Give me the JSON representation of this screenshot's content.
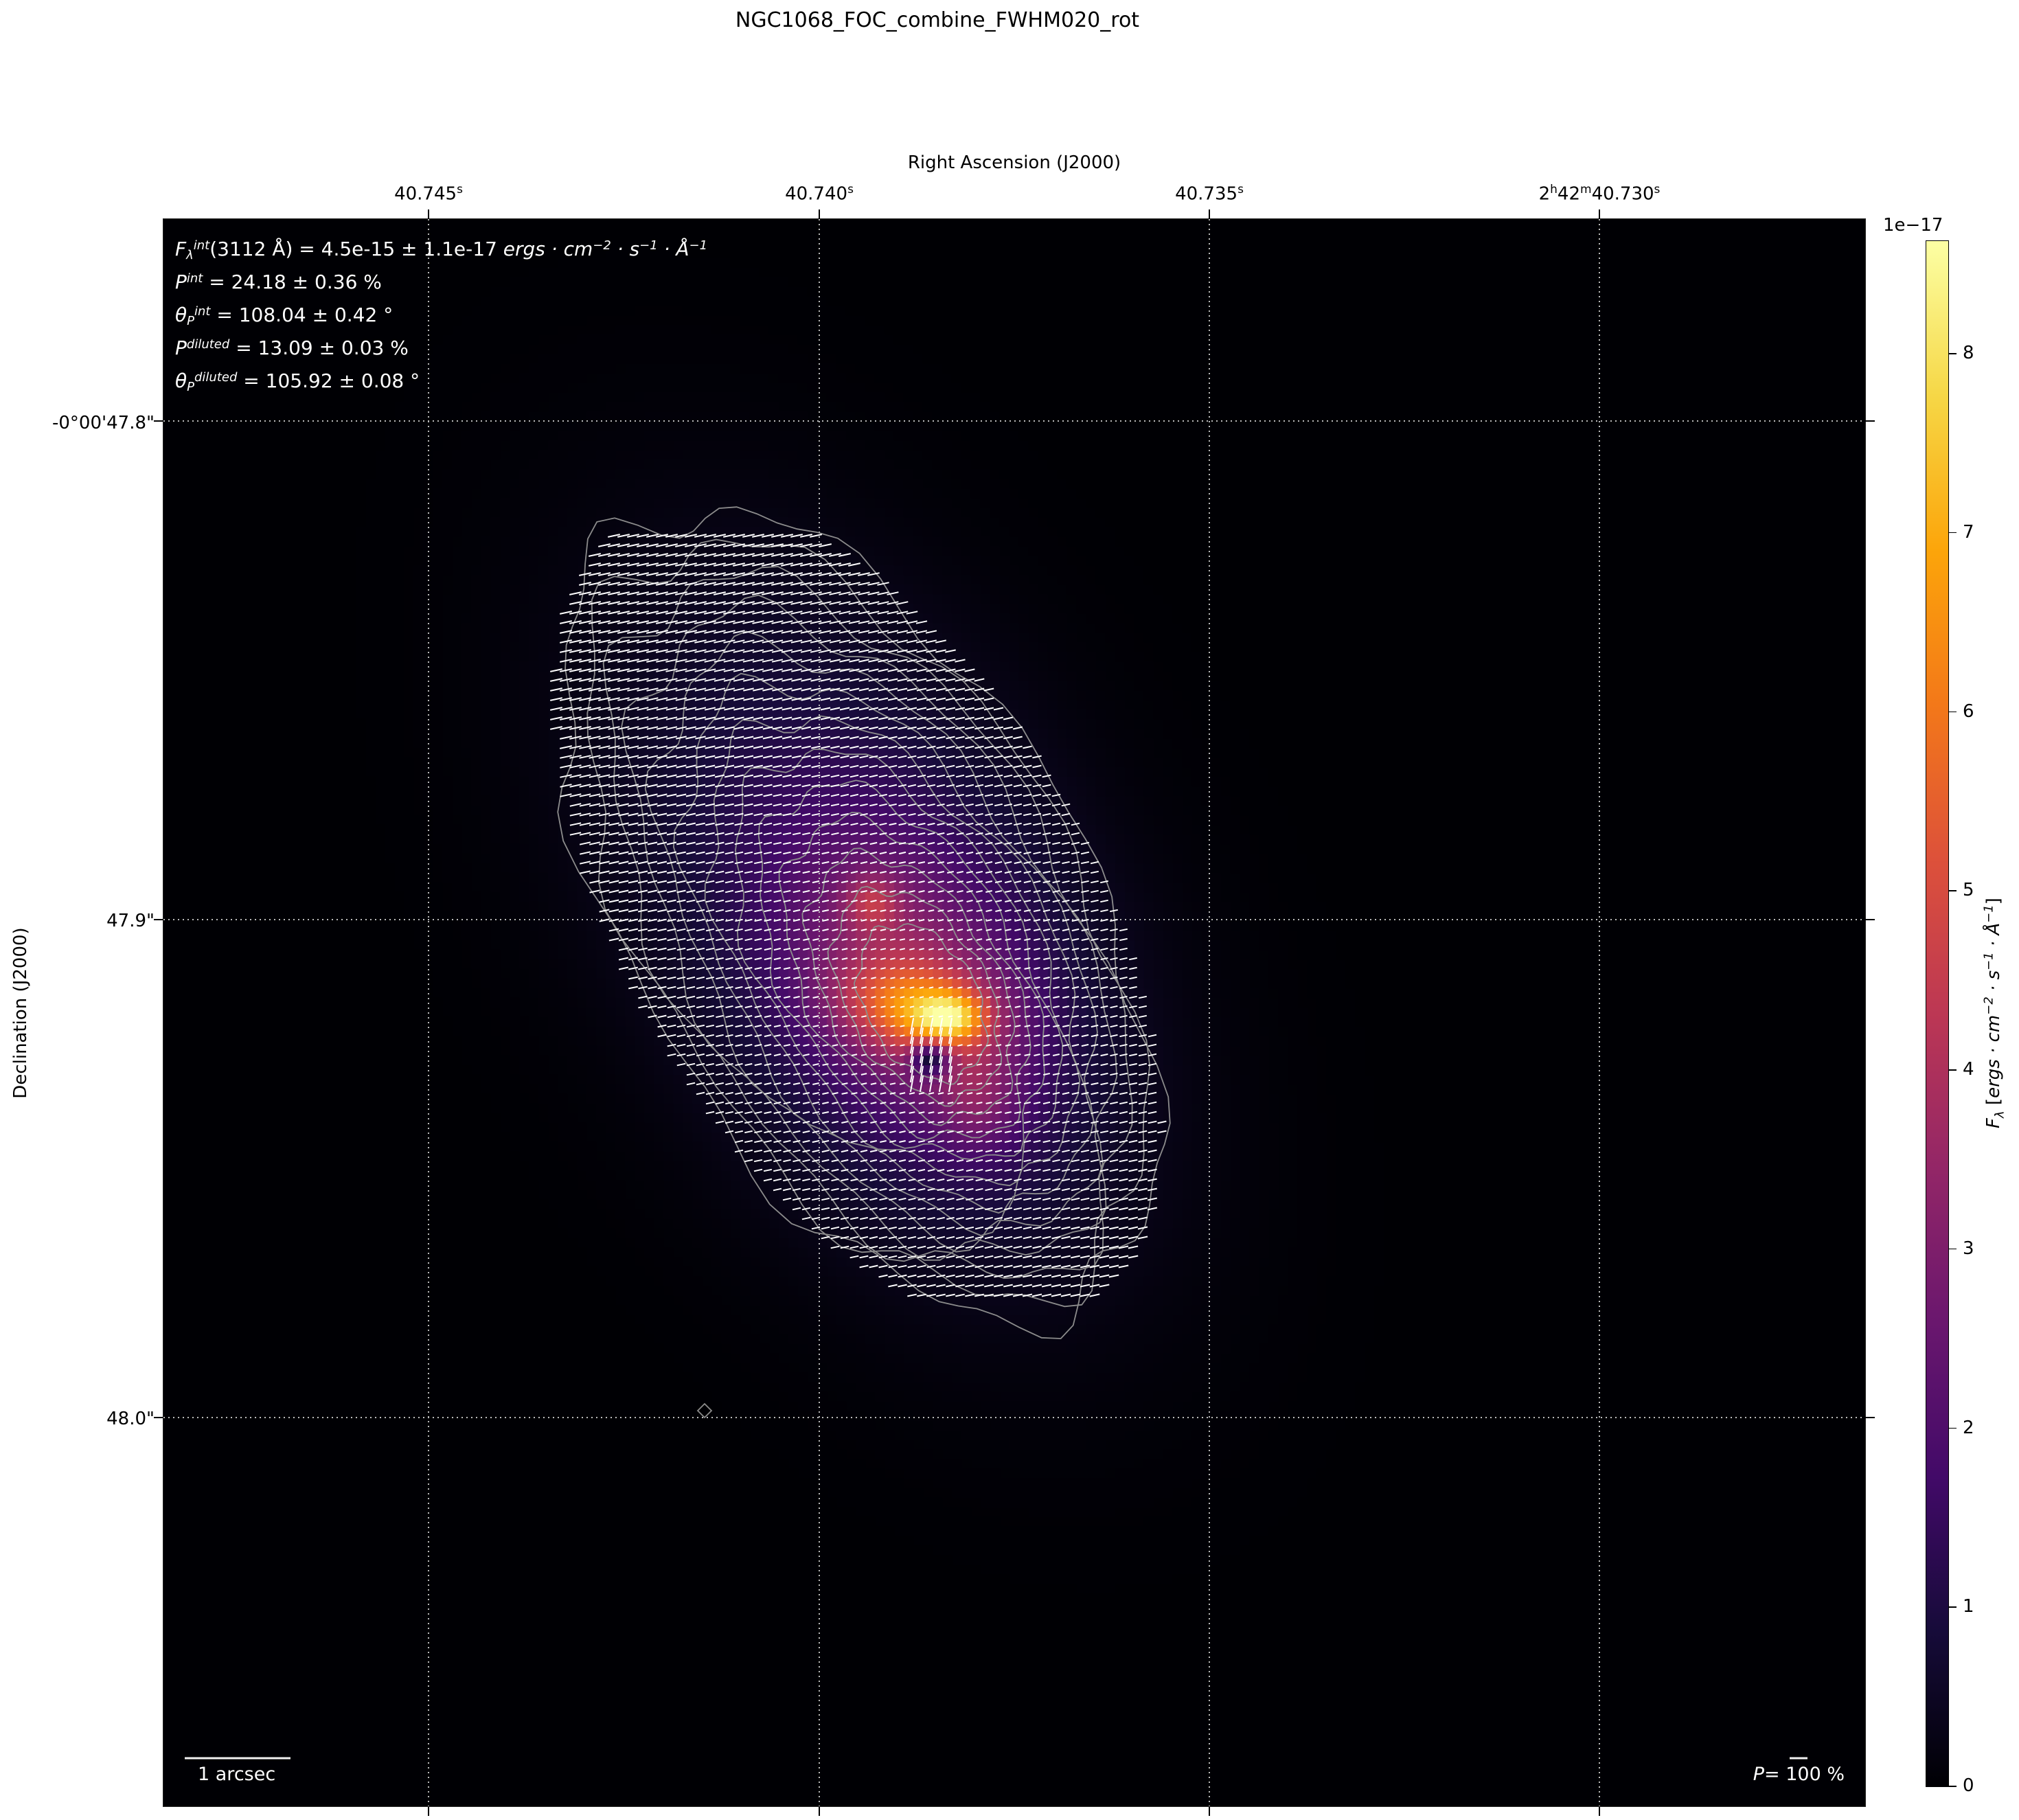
{
  "title": "NGC1068_FOC_combine_FWHM020_rot",
  "chart_data": {
    "type": "heatmap",
    "title": "NGC1068_FOC_combine_FWHM020_rot",
    "xlabel": "Right Ascension (J2000)",
    "ylabel": "Declination (J2000)",
    "x_ticks": [
      {
        "main": "40.745",
        "unit": "s"
      },
      {
        "main": "40.740",
        "unit": "s"
      },
      {
        "main": "40.735",
        "unit": "s"
      },
      {
        "prefix_h": "2",
        "h": "h",
        "prefix_m": "42",
        "m": "m",
        "main": "40.730",
        "unit": "s"
      }
    ],
    "y_ticks": [
      "-0°00'47.8\"",
      "47.9\"",
      "48.0\""
    ],
    "grid": true,
    "colormap": "inferno",
    "colorbar": {
      "vmin": 0,
      "vmax": 8.63,
      "offset_label": "1e−17",
      "ticks": [
        "0",
        "1",
        "2",
        "3",
        "4",
        "5",
        "6",
        "7",
        "8"
      ],
      "label_symbol": "F",
      "label_sub": "λ",
      "label_units": "ergs · cm",
      "label_exp1": "−2",
      "label_s": " · s",
      "label_exp2": "−1",
      "label_A": " · Å",
      "label_exp3": "−1"
    },
    "overlays": {
      "contours_color": "#8c8c8c",
      "vectors_color": "#ffffff"
    }
  },
  "annotations": [
    {
      "sym": "F",
      "sub": "λ",
      "sup": "int",
      "text": "(3112 Å) = 4.5e-15 ± 1.1e-17 ",
      "units": "ergs · cm",
      "e1": "−2",
      "s": " · s",
      "e2": "−1",
      "A": " · Å",
      "e3": "−1"
    },
    {
      "sym": "P",
      "sup": "int",
      "text": " = 24.18 ± 0.36 %"
    },
    {
      "sym": "θ",
      "sub": "P",
      "sup": "int",
      "text": " = 108.04 ± 0.42 °"
    },
    {
      "sym": "P",
      "sup": "diluted",
      "text": " = 13.09 ± 0.03 %"
    },
    {
      "sym": "θ",
      "sub": "P",
      "sup": "diluted",
      "text": " = 105.92 ± 0.08 °"
    }
  ],
  "scalebar": {
    "label": "1 arcsec"
  },
  "pol_scale": {
    "sym": "P",
    "text": "= 100 %"
  }
}
